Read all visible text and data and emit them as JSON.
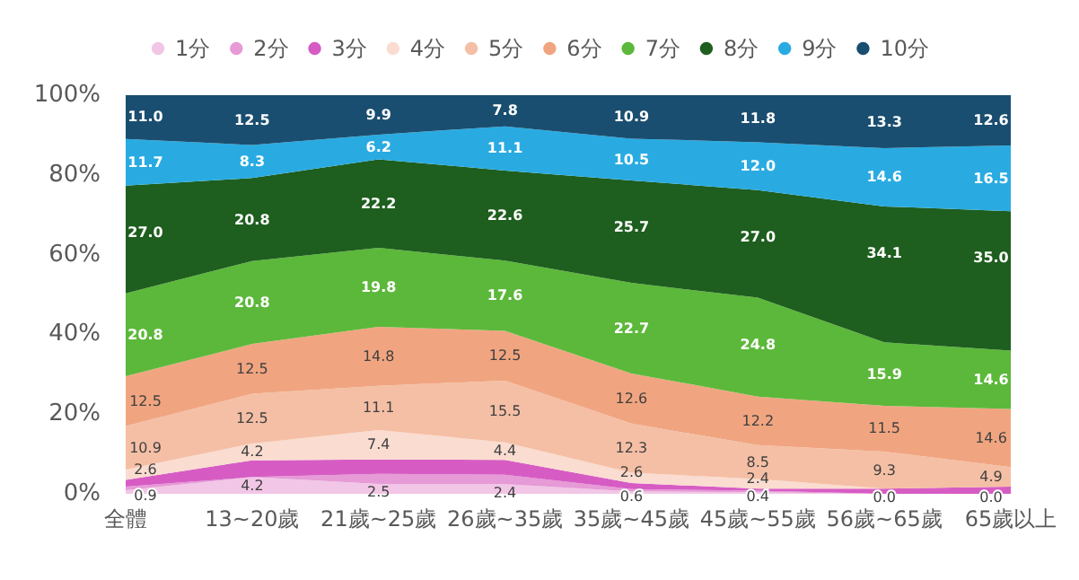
{
  "chart_data": {
    "type": "area",
    "stacked": true,
    "categories": [
      "全體",
      "13~20歲",
      "21歲~25歲",
      "26歲~35歲",
      "35歲~45歲",
      "45歲~55歲",
      "56歲~65歲",
      "65歲以上"
    ],
    "series": [
      {
        "name": "1分",
        "color": "#f2c6e6",
        "values": [
          0.9,
          4.2,
          2.5,
          2.4,
          0.6,
          0.4,
          0.0,
          0.0
        ],
        "value_labels": [
          "0.9",
          "4.2",
          "2.5",
          "2.4",
          "0.6",
          "0.4",
          "0.0",
          "0.0"
        ]
      },
      {
        "name": "2分",
        "color": "#e69ad6",
        "values": [
          0.9,
          0.0,
          2.5,
          2.4,
          0.6,
          0.4,
          0.0,
          0.0
        ],
        "value_labels": [
          null,
          null,
          null,
          null,
          null,
          null,
          null,
          null
        ]
      },
      {
        "name": "3分",
        "color": "#d65cc4",
        "values": [
          1.7,
          4.2,
          3.6,
          3.7,
          1.5,
          0.5,
          1.3,
          1.8
        ],
        "value_labels": [
          null,
          null,
          null,
          null,
          null,
          null,
          null,
          null
        ]
      },
      {
        "name": "4分",
        "color": "#fadcd0",
        "values": [
          2.6,
          4.2,
          7.4,
          4.4,
          2.6,
          2.4,
          0.0,
          0.0
        ],
        "value_labels": [
          "2.6",
          "4.2",
          "7.4",
          "4.4",
          "2.6",
          "2.4",
          null,
          null
        ]
      },
      {
        "name": "5分",
        "color": "#f5bfa5",
        "values": [
          10.9,
          12.5,
          11.1,
          15.5,
          12.3,
          8.5,
          9.3,
          4.9
        ],
        "value_labels": [
          "10.9",
          "12.5",
          "11.1",
          "15.5",
          "12.3",
          "8.5",
          "9.3",
          "4.9"
        ]
      },
      {
        "name": "6分",
        "color": "#f0a580",
        "values": [
          12.5,
          12.5,
          14.8,
          12.5,
          12.6,
          12.2,
          11.5,
          14.6
        ],
        "value_labels": [
          "12.5",
          "12.5",
          "14.8",
          "12.5",
          "12.6",
          "12.2",
          "11.5",
          "14.6"
        ]
      },
      {
        "name": "7分",
        "color": "#5cb83a",
        "values": [
          20.8,
          20.8,
          19.8,
          17.6,
          22.7,
          24.8,
          15.9,
          14.6
        ],
        "value_labels": [
          "20.8",
          "20.8",
          "19.8",
          "17.6",
          "22.7",
          "24.8",
          "15.9",
          "14.6"
        ]
      },
      {
        "name": "8分",
        "color": "#1e5e1e",
        "values": [
          27.0,
          20.8,
          22.2,
          22.6,
          25.7,
          27.0,
          34.1,
          35.0
        ],
        "value_labels": [
          "27.0",
          "20.8",
          "22.2",
          "22.6",
          "25.7",
          "27.0",
          "34.1",
          "35.0"
        ]
      },
      {
        "name": "9分",
        "color": "#29abe2",
        "values": [
          11.7,
          8.3,
          6.2,
          11.1,
          10.5,
          12.0,
          14.6,
          16.5
        ],
        "value_labels": [
          "11.7",
          "8.3",
          "6.2",
          "11.1",
          "10.5",
          "12.0",
          "14.6",
          "16.5"
        ]
      },
      {
        "name": "10分",
        "color": "#1a4e70",
        "values": [
          11.0,
          12.5,
          9.9,
          7.8,
          10.9,
          11.8,
          13.3,
          12.6
        ],
        "value_labels": [
          "11.0",
          "12.5",
          "9.9",
          "7.8",
          "10.9",
          "11.8",
          "13.3",
          "12.6"
        ]
      }
    ],
    "ylim": [
      0,
      100
    ],
    "yticks": [
      {
        "value": 0,
        "label": "0%"
      },
      {
        "value": 20,
        "label": "20%"
      },
      {
        "value": 40,
        "label": "40%"
      },
      {
        "value": 60,
        "label": "60%"
      },
      {
        "value": 80,
        "label": "80%"
      },
      {
        "value": 100,
        "label": "100%"
      }
    ],
    "grid": false,
    "legend": "top"
  }
}
